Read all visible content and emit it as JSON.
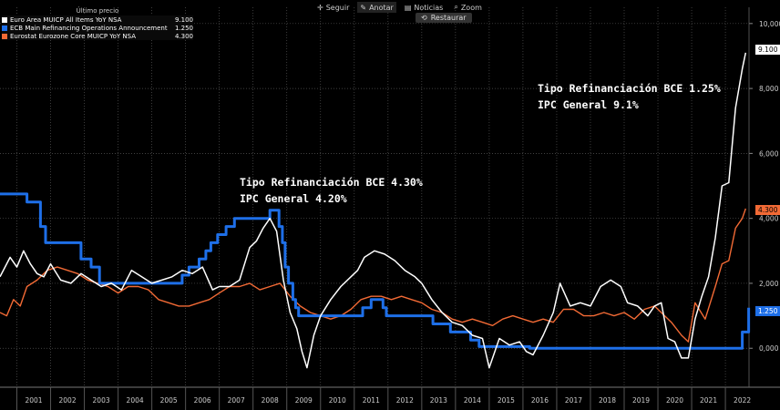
{
  "toolbar": {
    "seguir": "Seguir",
    "anotar": "Anotar",
    "noticias": "Noticias",
    "zoom": "Zoom",
    "restaurar": "Restaurar"
  },
  "legend": {
    "header": "Último precio",
    "items": [
      {
        "label": "Euro Area MUICP All Items YoY NSA",
        "value": "9.100",
        "color": "#ffffff"
      },
      {
        "label": "ECB Main Refinancing Operations Announcement Rate",
        "value": "1.250",
        "color": "#1e6fe8"
      },
      {
        "label": "Eurostat Eurozone Core MUICP YoY NSA",
        "value": "4.300",
        "color": "#f26a35"
      }
    ]
  },
  "annotations": [
    {
      "line1": "Tipo Refinanciación BCE 4.30%",
      "line2": "IPC General 4.20%"
    },
    {
      "line1": "Tipo Refinanciación BCE 1.25%",
      "line2": "IPC General 9.1%"
    }
  ],
  "colors": {
    "headline": "#ffffff",
    "ecb": "#1e6fe8",
    "core": "#f26a35",
    "grid": "#555555"
  },
  "chart_data": {
    "type": "line",
    "ylim": [
      -1.2,
      10.5
    ],
    "yticks": [
      0,
      2,
      4,
      6,
      8,
      10
    ],
    "ytick_labels": [
      "0,000",
      "2,000",
      "4,000",
      "6,000",
      "8,000",
      "10,000"
    ],
    "xlim": [
      2000.5,
      2022.7
    ],
    "xticks": [
      "2001",
      "2002",
      "2003",
      "2004",
      "2005",
      "2006",
      "2007",
      "2008",
      "2009",
      "2010",
      "2011",
      "2012",
      "2013",
      "2014",
      "2015",
      "2016",
      "2017",
      "2018",
      "2019",
      "2020",
      "2021",
      "2022"
    ],
    "last_value_tags": [
      "9.100",
      "4.300",
      "1.250"
    ],
    "series": [
      {
        "name": "Euro Area MUICP All Items YoY NSA",
        "x": [
          2000.5,
          2000.8,
          2001.0,
          2001.2,
          2001.4,
          2001.6,
          2001.8,
          2002.0,
          2002.3,
          2002.6,
          2002.9,
          2003.2,
          2003.5,
          2003.8,
          2004.1,
          2004.4,
          2004.7,
          2005.0,
          2005.3,
          2005.6,
          2005.9,
          2006.2,
          2006.5,
          2006.8,
          2007.0,
          2007.3,
          2007.6,
          2007.9,
          2008.1,
          2008.3,
          2008.5,
          2008.7,
          2008.9,
          2009.1,
          2009.3,
          2009.45,
          2009.6,
          2009.8,
          2010.0,
          2010.3,
          2010.6,
          2010.9,
          2011.1,
          2011.3,
          2011.6,
          2011.9,
          2012.2,
          2012.5,
          2012.8,
          2013.0,
          2013.3,
          2013.6,
          2013.9,
          2014.2,
          2014.5,
          2014.8,
          2015.0,
          2015.3,
          2015.6,
          2015.9,
          2016.1,
          2016.3,
          2016.6,
          2016.9,
          2017.1,
          2017.4,
          2017.7,
          2018.0,
          2018.3,
          2018.6,
          2018.9,
          2019.1,
          2019.4,
          2019.7,
          2019.9,
          2020.1,
          2020.3,
          2020.5,
          2020.7,
          2020.9,
          2021.1,
          2021.3,
          2021.5,
          2021.7,
          2021.9,
          2022.1,
          2022.3,
          2022.5,
          2022.6
        ],
        "y": [
          2.2,
          2.8,
          2.5,
          3.0,
          2.6,
          2.3,
          2.2,
          2.6,
          2.1,
          2.0,
          2.3,
          2.1,
          1.9,
          2.0,
          1.8,
          2.4,
          2.2,
          2.0,
          2.1,
          2.2,
          2.4,
          2.3,
          2.5,
          1.8,
          1.9,
          1.9,
          2.1,
          3.1,
          3.3,
          3.7,
          4.0,
          3.6,
          2.1,
          1.1,
          0.6,
          -0.1,
          -0.6,
          0.4,
          1.0,
          1.5,
          1.9,
          2.2,
          2.4,
          2.8,
          3.0,
          2.9,
          2.7,
          2.4,
          2.2,
          2.0,
          1.5,
          1.1,
          0.8,
          0.7,
          0.4,
          0.3,
          -0.6,
          0.3,
          0.1,
          0.2,
          -0.1,
          -0.2,
          0.4,
          1.1,
          2.0,
          1.3,
          1.4,
          1.3,
          1.9,
          2.1,
          1.9,
          1.4,
          1.3,
          1.0,
          1.3,
          1.4,
          0.3,
          0.2,
          -0.3,
          -0.3,
          0.9,
          1.6,
          2.2,
          3.4,
          5.0,
          5.1,
          7.4,
          8.6,
          9.1
        ]
      },
      {
        "name": "ECB Main Refinancing Operations Announcement Rate",
        "x": [
          2000.5,
          2001.3,
          2001.3,
          2001.7,
          2001.7,
          2001.85,
          2001.85,
          2002.9,
          2002.9,
          2003.2,
          2003.2,
          2003.45,
          2003.45,
          2005.9,
          2005.9,
          2006.1,
          2006.1,
          2006.4,
          2006.4,
          2006.6,
          2006.6,
          2006.75,
          2006.75,
          2006.95,
          2006.95,
          2007.2,
          2007.2,
          2007.45,
          2007.45,
          2008.5,
          2008.5,
          2008.77,
          2008.77,
          2008.87,
          2008.87,
          2008.95,
          2008.95,
          2009.05,
          2009.05,
          2009.18,
          2009.18,
          2009.26,
          2009.26,
          2009.35,
          2009.35,
          2011.25,
          2011.25,
          2011.5,
          2011.5,
          2011.85,
          2011.85,
          2011.95,
          2011.95,
          2013.33,
          2013.33,
          2013.85,
          2013.85,
          2014.45,
          2014.45,
          2014.7,
          2014.7,
          2016.2,
          2016.2,
          2022.5,
          2022.5,
          2022.69,
          2022.69
        ],
        "y": [
          4.75,
          4.75,
          4.5,
          4.5,
          3.75,
          3.75,
          3.25,
          3.25,
          2.75,
          2.75,
          2.5,
          2.5,
          2.0,
          2.0,
          2.25,
          2.25,
          2.5,
          2.5,
          2.75,
          2.75,
          3.0,
          3.0,
          3.25,
          3.25,
          3.5,
          3.5,
          3.75,
          3.75,
          4.0,
          4.0,
          4.25,
          4.25,
          3.75,
          3.75,
          3.25,
          3.25,
          2.5,
          2.5,
          2.0,
          2.0,
          1.5,
          1.5,
          1.25,
          1.25,
          1.0,
          1.0,
          1.25,
          1.25,
          1.5,
          1.5,
          1.25,
          1.25,
          1.0,
          1.0,
          0.75,
          0.75,
          0.5,
          0.5,
          0.25,
          0.25,
          0.05,
          0.05,
          0.0,
          0.0,
          0.5,
          0.5,
          1.25
        ]
      },
      {
        "name": "Eurostat Eurozone Core MUICP YoY NSA",
        "x": [
          2000.5,
          2000.7,
          2000.9,
          2001.1,
          2001.3,
          2001.6,
          2001.9,
          2002.2,
          2002.5,
          2002.8,
          2003.1,
          2003.4,
          2003.7,
          2004.0,
          2004.3,
          2004.6,
          2004.9,
          2005.2,
          2005.5,
          2005.8,
          2006.1,
          2006.4,
          2006.7,
          2007.0,
          2007.3,
          2007.6,
          2007.9,
          2008.2,
          2008.5,
          2008.8,
          2009.1,
          2009.4,
          2009.7,
          2010.0,
          2010.3,
          2010.6,
          2010.9,
          2011.2,
          2011.5,
          2011.8,
          2012.1,
          2012.4,
          2012.7,
          2013.0,
          2013.3,
          2013.6,
          2013.9,
          2014.2,
          2014.5,
          2014.8,
          2015.1,
          2015.4,
          2015.7,
          2016.0,
          2016.3,
          2016.6,
          2016.9,
          2017.2,
          2017.5,
          2017.8,
          2018.1,
          2018.4,
          2018.7,
          2019.0,
          2019.3,
          2019.6,
          2019.9,
          2020.1,
          2020.4,
          2020.7,
          2020.9,
          2021.1,
          2021.4,
          2021.7,
          2021.9,
          2022.1,
          2022.3,
          2022.5,
          2022.6
        ],
        "y": [
          1.1,
          1.0,
          1.5,
          1.3,
          1.9,
          2.1,
          2.4,
          2.5,
          2.4,
          2.3,
          2.1,
          2.0,
          1.9,
          1.7,
          1.9,
          1.9,
          1.8,
          1.5,
          1.4,
          1.3,
          1.3,
          1.4,
          1.5,
          1.7,
          1.9,
          1.9,
          2.0,
          1.8,
          1.9,
          2.0,
          1.6,
          1.3,
          1.1,
          1.0,
          0.9,
          1.0,
          1.2,
          1.5,
          1.6,
          1.6,
          1.5,
          1.6,
          1.5,
          1.4,
          1.2,
          1.1,
          0.9,
          0.8,
          0.9,
          0.8,
          0.7,
          0.9,
          1.0,
          0.9,
          0.8,
          0.9,
          0.8,
          1.2,
          1.2,
          1.0,
          1.0,
          1.1,
          1.0,
          1.1,
          0.9,
          1.2,
          1.3,
          1.1,
          0.8,
          0.4,
          0.2,
          1.4,
          0.9,
          1.9,
          2.6,
          2.7,
          3.7,
          4.0,
          4.3
        ]
      }
    ]
  }
}
